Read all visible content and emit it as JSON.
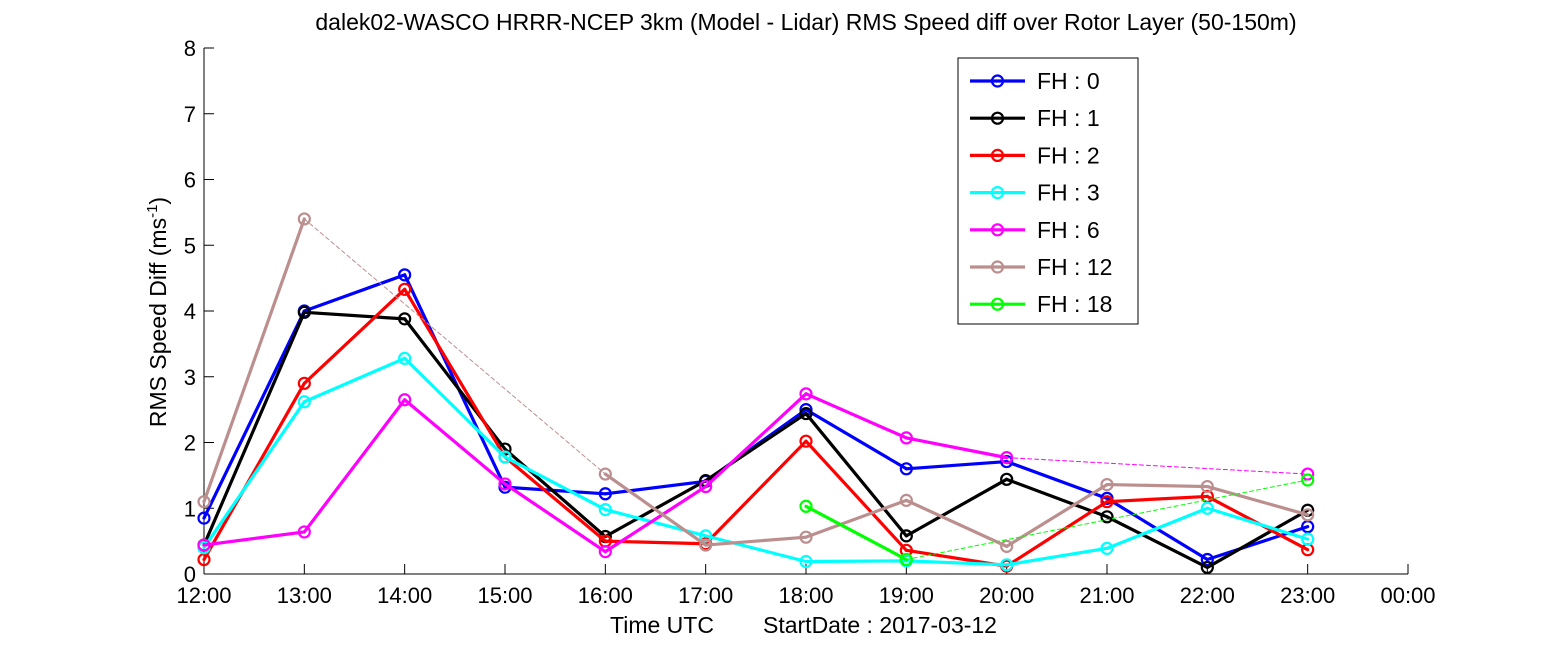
{
  "chart_data": {
    "type": "line",
    "title": "dalek02-WASCO HRRR-NCEP 3km (Model - Lidar) RMS Speed diff over Rotor Layer (50-150m)",
    "xlabel": "Time UTC",
    "start_date_label": "StartDate : 2017-03-12",
    "ylabel_main": "RMS Speed Diff (ms",
    "ylabel_sup": "-1",
    "ylabel_close": ")",
    "x_tick_labels": [
      "12:00",
      "13:00",
      "14:00",
      "15:00",
      "16:00",
      "17:00",
      "18:00",
      "19:00",
      "20:00",
      "21:00",
      "22:00",
      "23:00",
      "00:00"
    ],
    "y_tick_labels": [
      "0",
      "1",
      "2",
      "3",
      "4",
      "5",
      "6",
      "7",
      "8"
    ],
    "xlim": [
      12,
      24
    ],
    "ylim": [
      0,
      8
    ],
    "grid": false,
    "legend_position": "top-right",
    "series": [
      {
        "name": "FH : 0",
        "color": "#0000ff",
        "x": [
          12,
          13,
          14,
          15,
          16,
          17,
          18,
          19,
          20,
          21,
          22,
          23
        ],
        "values": [
          0.85,
          4.0,
          4.55,
          1.32,
          1.22,
          1.41,
          2.5,
          1.6,
          1.71,
          1.15,
          0.22,
          0.72
        ]
      },
      {
        "name": "FH : 1",
        "color": "#000000",
        "x": [
          12,
          13,
          14,
          15,
          16,
          17,
          18,
          19,
          20,
          21,
          22,
          23
        ],
        "values": [
          0.44,
          3.98,
          3.88,
          1.9,
          0.57,
          1.42,
          2.44,
          0.58,
          1.44,
          0.87,
          0.1,
          0.97
        ]
      },
      {
        "name": "FH : 2",
        "color": "#ff0000",
        "x": [
          12,
          13,
          14,
          15,
          16,
          17,
          18,
          19,
          20,
          21,
          22,
          23
        ],
        "values": [
          0.22,
          2.9,
          4.33,
          1.78,
          0.5,
          0.46,
          2.02,
          0.36,
          0.12,
          1.1,
          1.18,
          0.37
        ]
      },
      {
        "name": "FH : 3",
        "color": "#00ffff",
        "x": [
          12,
          13,
          14,
          15,
          16,
          17,
          18,
          19,
          20,
          21,
          22,
          23
        ],
        "values": [
          0.4,
          2.62,
          3.28,
          1.78,
          0.98,
          0.58,
          0.19,
          0.2,
          0.14,
          0.39,
          1.0,
          0.53
        ]
      },
      {
        "name": "FH : 6",
        "color": "#ff00ff",
        "x": [
          12,
          13,
          14,
          15,
          16,
          17,
          18,
          19,
          20,
          23
        ],
        "values": [
          0.44,
          0.64,
          2.65,
          1.37,
          0.34,
          1.33,
          2.74,
          2.07,
          1.77,
          1.52
        ],
        "dashed_gap_after_index": 8
      },
      {
        "name": "FH : 12",
        "color": "#bc8f8f",
        "x": [
          12,
          13,
          16,
          17,
          18,
          19,
          20,
          21,
          22,
          23
        ],
        "values": [
          1.1,
          5.4,
          1.52,
          0.44,
          0.56,
          1.12,
          0.42,
          1.36,
          1.33,
          0.9
        ],
        "dashed_gap_after_index": 1
      },
      {
        "name": "FH : 18",
        "color": "#00ff00",
        "x": [
          18,
          19,
          23
        ],
        "values": [
          1.03,
          0.22,
          1.43
        ],
        "dashed_gap_after_index": 1
      }
    ]
  }
}
